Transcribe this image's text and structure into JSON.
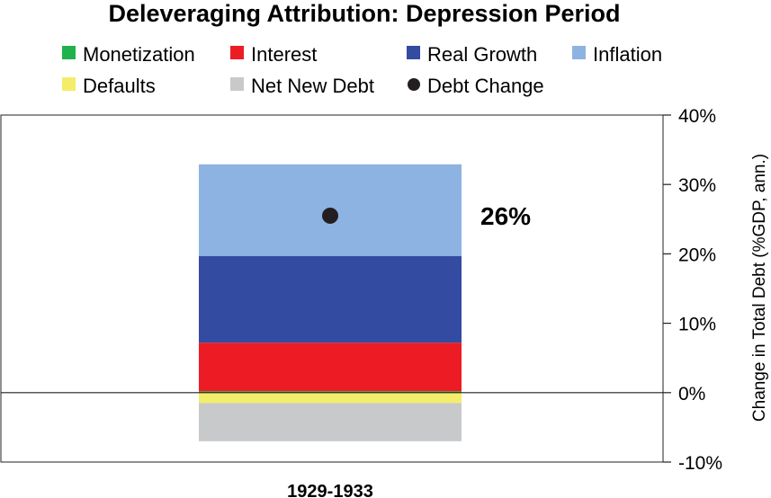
{
  "chart_data": {
    "type": "bar",
    "stacked": true,
    "title": "Deleveraging Attribution: Depression Period",
    "categories": [
      "1929-1933"
    ],
    "ylabel": "Change in Total Debt (%GDP, ann.)",
    "ylim": [
      -10,
      40
    ],
    "yticks": [
      "40%",
      "30%",
      "20%",
      "10%",
      "0%",
      "-10%"
    ],
    "ytick_values": [
      40,
      30,
      20,
      10,
      0,
      -10
    ],
    "grid": false,
    "legend_position": "top",
    "series": [
      {
        "name": "Monetization",
        "values": [
          0.2
        ],
        "color": "#21b24b"
      },
      {
        "name": "Interest",
        "values": [
          7.0
        ],
        "color": "#ed1c24"
      },
      {
        "name": "Real Growth",
        "values": [
          12.5
        ],
        "color": "#334ca1"
      },
      {
        "name": "Inflation",
        "values": [
          13.2
        ],
        "color": "#8db3e2"
      },
      {
        "name": "Defaults",
        "values": [
          -1.5
        ],
        "color": "#f4ed6a"
      },
      {
        "name": "Net New Debt",
        "values": [
          -5.5
        ],
        "color": "#c8c9cb"
      }
    ],
    "legend_order": [
      "Monetization",
      "Interest",
      "Real Growth",
      "Inflation",
      "Defaults",
      "Net New Debt",
      "Debt Change"
    ],
    "points": [
      {
        "name": "Debt Change",
        "values": [
          25.5
        ],
        "label": "26%",
        "color": "#231f20"
      }
    ]
  }
}
